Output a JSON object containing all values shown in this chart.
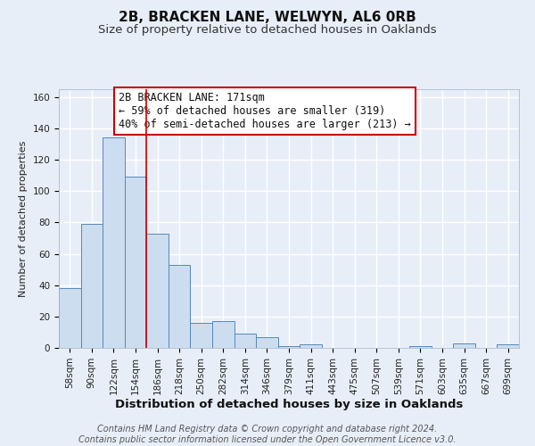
{
  "title": "2B, BRACKEN LANE, WELWYN, AL6 0RB",
  "subtitle": "Size of property relative to detached houses in Oaklands",
  "xlabel": "Distribution of detached houses by size in Oaklands",
  "ylabel": "Number of detached properties",
  "bar_labels": [
    "58sqm",
    "90sqm",
    "122sqm",
    "154sqm",
    "186sqm",
    "218sqm",
    "250sqm",
    "282sqm",
    "314sqm",
    "346sqm",
    "379sqm",
    "411sqm",
    "443sqm",
    "475sqm",
    "507sqm",
    "539sqm",
    "571sqm",
    "603sqm",
    "635sqm",
    "667sqm",
    "699sqm"
  ],
  "bar_values": [
    38,
    79,
    134,
    109,
    73,
    53,
    16,
    17,
    9,
    7,
    1,
    2,
    0,
    0,
    0,
    0,
    1,
    0,
    3,
    0,
    2
  ],
  "bar_color": "#ccddf0",
  "bar_edge_color": "#5588bb",
  "vline_x": 3.5,
  "vline_color": "#cc0000",
  "ylim": [
    0,
    165
  ],
  "yticks": [
    0,
    20,
    40,
    60,
    80,
    100,
    120,
    140,
    160
  ],
  "annotation_title": "2B BRACKEN LANE: 171sqm",
  "annotation_line1": "← 59% of detached houses are smaller (319)",
  "annotation_line2": "40% of semi-detached houses are larger (213) →",
  "annotation_box_color": "#ffffff",
  "annotation_box_edge": "#cc0000",
  "footer_line1": "Contains HM Land Registry data © Crown copyright and database right 2024.",
  "footer_line2": "Contains public sector information licensed under the Open Government Licence v3.0.",
  "fig_background_color": "#e8eef8",
  "plot_background_color": "#e8eef8",
  "grid_color": "#ffffff",
  "title_fontsize": 11,
  "subtitle_fontsize": 9.5,
  "xlabel_fontsize": 9.5,
  "ylabel_fontsize": 8,
  "tick_fontsize": 7.5,
  "annotation_fontsize": 8.5,
  "footer_fontsize": 7
}
